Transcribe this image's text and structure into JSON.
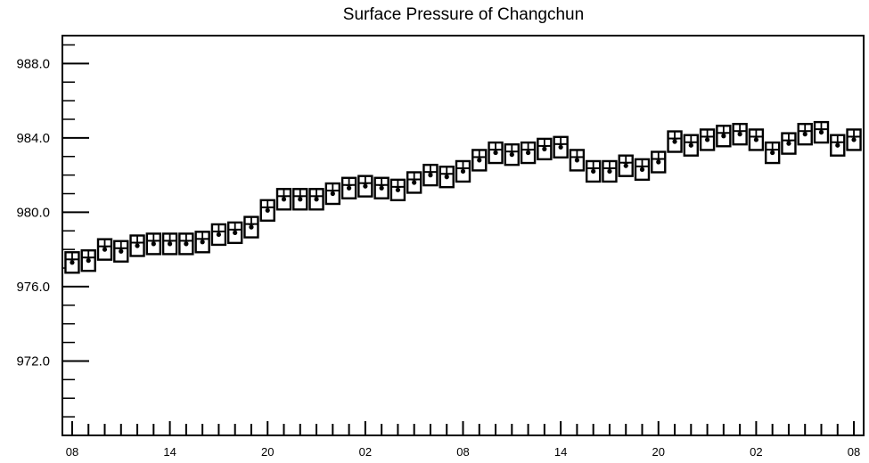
{
  "chart_data": {
    "type": "box",
    "title": "Surface Pressure of Changchun",
    "xlabel": "",
    "ylabel": "",
    "ylim": [
      968.0,
      989.5
    ],
    "y_ticks": [
      "988.0",
      "984.0",
      "980.0",
      "976.0",
      "972.0"
    ],
    "y_tick_values": [
      988,
      984,
      980,
      976,
      972
    ],
    "x_tick_labels": [
      "08",
      "14",
      "20",
      "02",
      "08",
      "14",
      "20",
      "02",
      "08"
    ],
    "x_tick_index": [
      0,
      6,
      12,
      18,
      24,
      30,
      36,
      42,
      48
    ],
    "x_range": [
      -0.6,
      48.6
    ],
    "series": [
      {
        "values": [
          977.3,
          977.4,
          978.0,
          977.9,
          978.2,
          978.3,
          978.3,
          978.3,
          978.4,
          978.8,
          978.9,
          979.2,
          980.1,
          980.7,
          980.7,
          980.7,
          981.0,
          981.3,
          981.4,
          981.3,
          981.2,
          981.6,
          982.0,
          981.9,
          982.2,
          982.8,
          983.2,
          983.1,
          983.2,
          983.4,
          983.5,
          982.8,
          982.2,
          982.2,
          982.5,
          982.3,
          982.7,
          983.8,
          983.6,
          983.9,
          984.1,
          984.2,
          983.9,
          983.2,
          983.7,
          984.2,
          984.3,
          983.6,
          983.9
        ]
      }
    ]
  }
}
